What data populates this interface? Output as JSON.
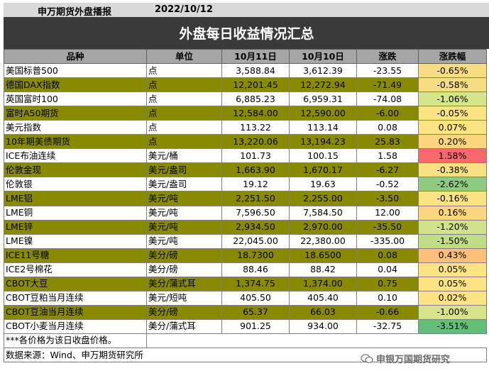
{
  "header": {
    "source": "申万期货外盘播报",
    "date": "2022/10/12",
    "title": "外盘每日收益情况汇总"
  },
  "columns": [
    "品种",
    "单位",
    "10月11日",
    "10月10日",
    "涨跌",
    "涨跌幅"
  ],
  "rows": [
    {
      "name": "美国标普500",
      "unit": "点",
      "d1": "3,588.84",
      "d0": "3,612.39",
      "chg": "-23.55",
      "pct": "-0.65%",
      "pct_color": "#f7dc84"
    },
    {
      "name": "德国DAX指数",
      "unit": "点",
      "d1": "12,201.45",
      "d0": "12,272.94",
      "chg": "-71.49",
      "pct": "-0.58%",
      "pct_color": "#f7dc84"
    },
    {
      "name": "英国富时100",
      "unit": "点",
      "d1": "6,885.23",
      "d0": "6,959.31",
      "chg": "-74.08",
      "pct": "-1.06%",
      "pct_color": "#d6e48a"
    },
    {
      "name": "富时A50期货",
      "unit": "点",
      "d1": "12,584.00",
      "d0": "12,590.00",
      "chg": "-6.00",
      "pct": "-0.05%",
      "pct_color": "#fbe283"
    },
    {
      "name": "美元指数",
      "unit": "点",
      "d1": "113.22",
      "d0": "113.14",
      "chg": "0.08",
      "pct": "0.07%",
      "pct_color": "#fde383"
    },
    {
      "name": "10年期美债期货",
      "unit": "点",
      "d1": "13,220.06",
      "d0": "13,194.23",
      "chg": "25.83",
      "pct": "0.20%",
      "pct_color": "#fdd580"
    },
    {
      "name": "ICE布油连续",
      "unit": "美元/桶",
      "d1": "101.73",
      "d0": "100.15",
      "chg": "1.58",
      "pct": "1.58%",
      "pct_color": "#f8696b"
    },
    {
      "name": "伦敦金现",
      "unit": "美元/盎司",
      "d1": "1,663.90",
      "d0": "1,670.17",
      "chg": "-6.27",
      "pct": "-0.38%",
      "pct_color": "#f9e084"
    },
    {
      "name": "伦敦银",
      "unit": "美元/盎司",
      "d1": "19.12",
      "d0": "19.63",
      "chg": "-0.52",
      "pct": "-2.62%",
      "pct_color": "#8fcb7f"
    },
    {
      "name": "LME铝",
      "unit": "美元/吨",
      "d1": "2,251.50",
      "d0": "2,255.00",
      "chg": "-3.50",
      "pct": "-0.16%",
      "pct_color": "#fbe283"
    },
    {
      "name": "LME铜",
      "unit": "美元/吨",
      "d1": "7,596.50",
      "d0": "7,584.50",
      "chg": "12.00",
      "pct": "0.16%",
      "pct_color": "#fdd580"
    },
    {
      "name": "LME锌",
      "unit": "美元/吨",
      "d1": "2,934.50",
      "d0": "2,970.00",
      "chg": "-35.50",
      "pct": "-1.20%",
      "pct_color": "#d2e28a"
    },
    {
      "name": "LME镍",
      "unit": "美元/吨",
      "d1": "22,045.00",
      "d0": "22,380.00",
      "chg": "-335.00",
      "pct": "-1.50%",
      "pct_color": "#c1dd87"
    },
    {
      "name": "ICE11号糖",
      "unit": "美分/磅",
      "d1": "18.7300",
      "d0": "18.6500",
      "chg": "0.08",
      "pct": "0.43%",
      "pct_color": "#fcbf7b"
    },
    {
      "name": "ICE2号棉花",
      "unit": "美分/磅",
      "d1": "88.46",
      "d0": "88.42",
      "chg": "0.04",
      "pct": "0.05%",
      "pct_color": "#fde383"
    },
    {
      "name": "CBOT大豆",
      "unit": "美分/蒲式耳",
      "d1": "1,374.75",
      "d0": "1,374.00",
      "chg": "0.75",
      "pct": "0.05%",
      "pct_color": "#fde383"
    },
    {
      "name": "CBOT豆粕当月连续",
      "unit": "美元/短吨",
      "d1": "405.50",
      "d0": "405.40",
      "chg": "0.10",
      "pct": "0.02%",
      "pct_color": "#fde383"
    },
    {
      "name": "CBOT豆油当月连续",
      "unit": "美分/磅",
      "d1": "65.37",
      "d0": "66.03",
      "chg": "-0.66",
      "pct": "-1.00%",
      "pct_color": "#d8e48a"
    },
    {
      "name": "CBOT小麦当月连续",
      "unit": "美分/蒲式耳",
      "d1": "901.25",
      "d0": "934.00",
      "chg": "-32.75",
      "pct": "-3.51%",
      "pct_color": "#63be7b"
    }
  ],
  "notes": [
    "***各价格为该日收盘价格。",
    "数据来源：Wind、申万期货研究所"
  ],
  "watermark": "申银万国期货研究"
}
